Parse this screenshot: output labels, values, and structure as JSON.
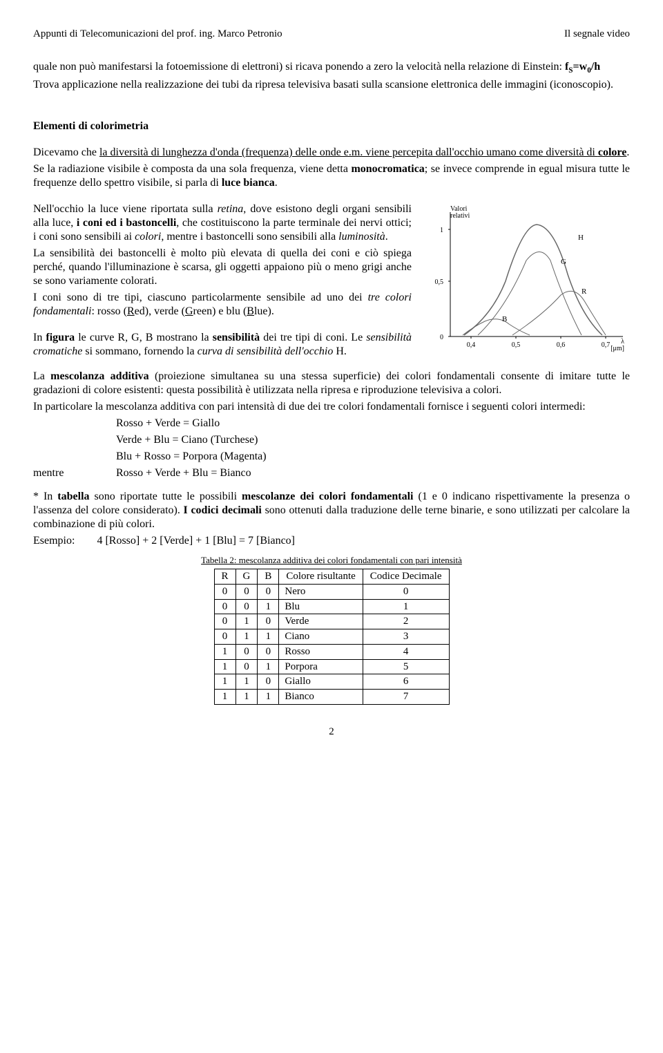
{
  "header": {
    "left": "Appunti di Telecomunicazioni del prof. ing. Marco Petronio",
    "right": "Il segnale video"
  },
  "para1_a": "quale non può manifestarsi la fotoemissione di elettroni) si ricava ponendo a zero la velocità nella relazione di Einstein:   ",
  "para1_formula": "f",
  "para1_sub": "S",
  "para1_eq": "=w",
  "para1_sub2": "0",
  "para1_end": "/h",
  "para2": "Trova applicazione nella realizzazione dei tubi da ripresa televisiva basati sulla scansione elettronica delle immagini (iconoscopio).",
  "section_title": "Elementi di colorimetria",
  "p3_a": "Dicevamo che ",
  "p3_u": "la diversità di lunghezza d'onda (frequenza) delle onde e.m. viene percepita dall'occhio umano come diversità di ",
  "p3_u_b": "colore",
  "p3_dot": ".",
  "p4_a": "Se la radiazione visibile è composta da una sola frequenza, viene detta ",
  "p4_b1": "monocromatica",
  "p4_b": "; se invece comprende in egual misura tutte le frequenze dello spettro visibile, si parla di ",
  "p4_b2": "luce bianca",
  "p4_c": ".",
  "p5_a": "Nell'occhio la luce viene riportata sulla ",
  "p5_i1": "retina",
  "p5_b": ", dove esistono degli organi sensibili alla luce, ",
  "p5_b1": "i coni ed i bastoncelli",
  "p5_c": ", che costituiscono la parte terminale dei nervi ottici; i coni sono sensibili ai ",
  "p5_i2": "colori",
  "p5_d": ", mentre i bastoncelli sono sensibili alla ",
  "p5_i3": "luminosità",
  "p5_e": ".",
  "p6": "La sensibilità dei bastoncelli è molto più elevata di quella dei coni e ciò spiega perché, quando l'illuminazione è scarsa, gli oggetti appaiono più o meno grigi anche se sono variamente colorati.",
  "p7_a": "I coni sono di tre tipi, ciascuno particolarmente sensibile ad uno dei ",
  "p7_i": "tre colori fondamentali",
  "p7_b": ": rosso (",
  "p7_u1": "R",
  "p7_c": "ed), verde (",
  "p7_u2": "G",
  "p7_d": "reen) e blu (",
  "p7_u3": "B",
  "p7_e": "lue).",
  "p8_a": "In ",
  "p8_b1": "figura",
  "p8_b": " le curve R, G, B mostrano la ",
  "p8_b2": "sensibilità",
  "p8_c": " dei tre tipi di coni. Le ",
  "p8_i1": "sensibilità cromatiche",
  "p8_d": " si sommano, fornendo la ",
  "p8_i2": "curva di sensibilità dell'occhio",
  "p8_e": " H.",
  "p9_a": "La ",
  "p9_b1": "mescolanza additiva",
  "p9_b": " (proiezione simultanea su una stessa superficie) dei colori fondamentali consente di imitare tutte le gradazioni di colore esistenti: questa possibilità è utilizzata nella ripresa e riproduzione televisiva a colori.",
  "p10": "In particolare la mescolanza additiva con pari intensità di due dei tre colori fondamentali fornisce i seguenti colori intermedi:",
  "mix": {
    "l1": "Rosso + Verde = Giallo",
    "l2": "Verde + Blu = Ciano (Turchese)",
    "l3": "Blu + Rosso = Porpora (Magenta)",
    "mentre": "mentre",
    "l4": "Rosso + Verde + Blu = Bianco"
  },
  "p11_a": "* In ",
  "p11_b1": "tabella",
  "p11_b": " sono riportate tutte le possibili ",
  "p11_b2": "mescolanze dei colori fondamentali",
  "p11_c": " (1 e 0 indicano rispettivamente la presenza o l'assenza del colore considerato). ",
  "p11_b3": "I codici decimali",
  "p11_d": " sono ottenuti dalla traduzione delle terne binarie, e sono utilizzati per calcolare la combinazione di più colori.",
  "p12": "Esempio:        4 [Rosso] + 2 [Verde] + 1 [Blu] = 7 [Bianco]",
  "table_caption": "Tabella 2: mescolanza additiva dei colori fondamentali con pari intensità",
  "table": {
    "headers": [
      "R",
      "G",
      "B",
      "Colore risultante",
      "Codice Decimale"
    ],
    "rows": [
      [
        "0",
        "0",
        "0",
        "Nero",
        "0"
      ],
      [
        "0",
        "0",
        "1",
        "Blu",
        "1"
      ],
      [
        "0",
        "1",
        "0",
        "Verde",
        "2"
      ],
      [
        "0",
        "1",
        "1",
        "Ciano",
        "3"
      ],
      [
        "1",
        "0",
        "0",
        "Rosso",
        "4"
      ],
      [
        "1",
        "0",
        "1",
        "Porpora",
        "5"
      ],
      [
        "1",
        "1",
        "0",
        "Giallo",
        "6"
      ],
      [
        "1",
        "1",
        "1",
        "Bianco",
        "7"
      ]
    ]
  },
  "page_number": "2",
  "chart": {
    "y_label": "Valori relativi",
    "x_label": "λ [μm]",
    "x_ticks": [
      "0,4",
      "0,5",
      "0,6",
      "0,7"
    ],
    "y_ticks": [
      "0",
      "0,5",
      "1"
    ],
    "curve_color": "#666666",
    "axis_color": "#000000",
    "label_H": "H",
    "label_G": "G",
    "label_R": "R",
    "label_B": "B",
    "xlim": [
      0.35,
      0.75
    ],
    "ylim": [
      0,
      1.05
    ]
  }
}
